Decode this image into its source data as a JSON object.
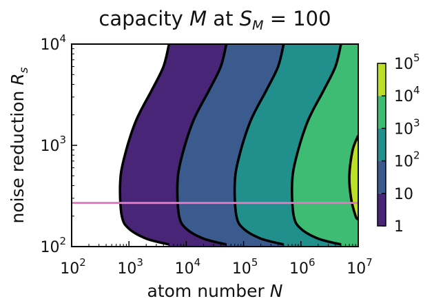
{
  "chart_data": {
    "type": "contour",
    "title": {
      "pre": "capacity ",
      "var": "M",
      "mid": " at ",
      "sub_base": "S",
      "sub": "M",
      "post": " = 100"
    },
    "xlabel": {
      "text": "atom number ",
      "var": "N"
    },
    "ylabel": {
      "text": "noise reduction ",
      "var": "R",
      "sub": "s"
    },
    "x_scale": "log",
    "y_scale": "log",
    "xlim": [
      100,
      10000000
    ],
    "ylim": [
      100,
      10000
    ],
    "x_ticks": [
      {
        "value": 100,
        "base": "10",
        "exp": "2"
      },
      {
        "value": 1000,
        "base": "10",
        "exp": "3"
      },
      {
        "value": 10000,
        "base": "10",
        "exp": "4"
      },
      {
        "value": 100000,
        "base": "10",
        "exp": "5"
      },
      {
        "value": 1000000,
        "base": "10",
        "exp": "6"
      },
      {
        "value": 10000000,
        "base": "10",
        "exp": "7"
      }
    ],
    "y_ticks": [
      {
        "value": 100,
        "base": "10",
        "exp": "2"
      },
      {
        "value": 1000,
        "base": "10",
        "exp": "3"
      },
      {
        "value": 10000,
        "base": "10",
        "exp": "4"
      }
    ],
    "levels": [
      {
        "value": 1,
        "label_base": "1",
        "label_exp": "",
        "color": "#482576"
      },
      {
        "value": 10,
        "label_base": "10",
        "label_exp": "",
        "color": "#3b5b8e"
      },
      {
        "value": 100,
        "label_base": "10",
        "label_exp": "2",
        "color": "#21908c"
      },
      {
        "value": 1000,
        "label_base": "10",
        "label_exp": "3",
        "color": "#3fbc73"
      },
      {
        "value": 10000,
        "label_base": "10",
        "label_exp": "4",
        "color": "#bddf26"
      },
      {
        "value": 100000,
        "label_base": "10",
        "label_exp": "5",
        "color": ""
      }
    ],
    "contour_lines": [
      {
        "level": 1,
        "points": [
          [
            5000,
            10000
          ],
          [
            4000,
            6000
          ],
          [
            2500,
            3500
          ],
          [
            1300,
            1700
          ],
          [
            800,
            700
          ],
          [
            700,
            400
          ],
          [
            750,
            200
          ],
          [
            1000,
            150
          ],
          [
            2000,
            120
          ],
          [
            5000,
            105
          ]
        ]
      },
      {
        "level": 10,
        "points": [
          [
            50000,
            10000
          ],
          [
            40000,
            6000
          ],
          [
            25000,
            3500
          ],
          [
            13000,
            1700
          ],
          [
            8000,
            700
          ],
          [
            7000,
            400
          ],
          [
            7500,
            200
          ],
          [
            10000,
            150
          ],
          [
            20000,
            120
          ],
          [
            50000,
            105
          ]
        ]
      },
      {
        "level": 100,
        "points": [
          [
            500000,
            10000
          ],
          [
            400000,
            6000
          ],
          [
            250000,
            3500
          ],
          [
            130000,
            1700
          ],
          [
            80000,
            700
          ],
          [
            70000,
            400
          ],
          [
            75000,
            200
          ],
          [
            100000,
            150
          ],
          [
            200000,
            120
          ],
          [
            500000,
            105
          ]
        ]
      },
      {
        "level": 1000,
        "points": [
          [
            5000000,
            10000
          ],
          [
            4000000,
            6000
          ],
          [
            2500000,
            3500
          ],
          [
            1300000,
            1700
          ],
          [
            800000,
            700
          ],
          [
            700000,
            400
          ],
          [
            750000,
            200
          ],
          [
            1000000,
            150
          ],
          [
            2000000,
            120
          ],
          [
            5000000,
            105
          ]
        ]
      },
      {
        "level": 10000,
        "points": [
          [
            10000000,
            1250
          ],
          [
            8000000,
            900
          ],
          [
            7000000,
            500
          ],
          [
            7500000,
            300
          ],
          [
            9000000,
            200
          ],
          [
            10000000,
            185
          ]
        ]
      }
    ],
    "horizontal_line": {
      "y": 270,
      "color": "#e377c2"
    },
    "colorbar": {
      "position": "right"
    }
  }
}
